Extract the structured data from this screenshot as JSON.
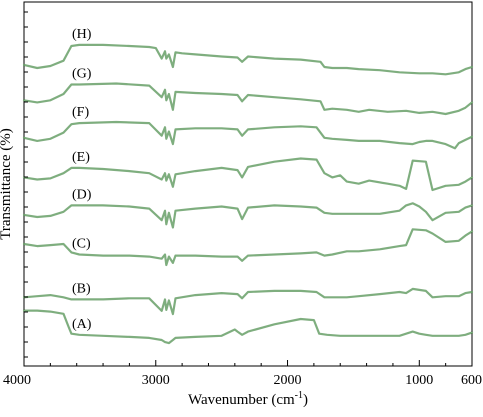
{
  "chart_data": {
    "type": "line",
    "title": "",
    "xlabel": "Wavenumber (cm",
    "xlabel_superscript": "-1",
    "xlabel_close": ")",
    "ylabel": "Transmittance (%)",
    "xlim": [
      4000,
      600
    ],
    "x_reversed": true,
    "y_tick_labels": false,
    "grid": false,
    "legend": "none",
    "x_ticks": [
      {
        "value": 4000,
        "label": "4000"
      },
      {
        "value": 3000,
        "label": "3000"
      },
      {
        "value": 2000,
        "label": "2000"
      },
      {
        "value": 1000,
        "label": "1000"
      },
      {
        "value": 600,
        "label": "600"
      }
    ],
    "colors": {
      "primary": "#7dae7d",
      "noise": "#1f6e1f",
      "axis": "#000000"
    },
    "series": [
      {
        "name": "(H)",
        "offset": 7,
        "points": [
          [
            4000,
            12
          ],
          [
            3900,
            9
          ],
          [
            3800,
            11
          ],
          [
            3700,
            16
          ],
          [
            3640,
            30
          ],
          [
            3580,
            31
          ],
          [
            3400,
            31
          ],
          [
            3200,
            30
          ],
          [
            3050,
            29
          ],
          [
            3000,
            28
          ],
          [
            2955,
            18
          ],
          [
            2930,
            25
          ],
          [
            2920,
            18
          ],
          [
            2900,
            22
          ],
          [
            2870,
            10
          ],
          [
            2850,
            24
          ],
          [
            2800,
            23
          ],
          [
            2700,
            22
          ],
          [
            2500,
            20
          ],
          [
            2380,
            19
          ],
          [
            2345,
            15
          ],
          [
            2300,
            20
          ],
          [
            2100,
            18
          ],
          [
            1900,
            17
          ],
          [
            1750,
            15
          ],
          [
            1720,
            10
          ],
          [
            1660,
            9
          ],
          [
            1550,
            9
          ],
          [
            1460,
            8
          ],
          [
            1300,
            7
          ],
          [
            1150,
            5
          ],
          [
            1000,
            4
          ],
          [
            900,
            4
          ],
          [
            800,
            3
          ],
          [
            700,
            5
          ],
          [
            650,
            8
          ],
          [
            600,
            10
          ]
        ]
      },
      {
        "name": "(G)",
        "offset": 6,
        "points": [
          [
            4000,
            14
          ],
          [
            3900,
            12
          ],
          [
            3800,
            14
          ],
          [
            3700,
            20
          ],
          [
            3640,
            29
          ],
          [
            3580,
            29
          ],
          [
            3300,
            30
          ],
          [
            3050,
            28
          ],
          [
            2955,
            17
          ],
          [
            2930,
            24
          ],
          [
            2920,
            14
          ],
          [
            2900,
            20
          ],
          [
            2870,
            5
          ],
          [
            2850,
            22
          ],
          [
            2700,
            21
          ],
          [
            2500,
            20
          ],
          [
            2380,
            19
          ],
          [
            2345,
            13
          ],
          [
            2300,
            19
          ],
          [
            2100,
            17
          ],
          [
            1900,
            15
          ],
          [
            1750,
            13
          ],
          [
            1720,
            5
          ],
          [
            1660,
            6
          ],
          [
            1550,
            5
          ],
          [
            1460,
            3
          ],
          [
            1380,
            5
          ],
          [
            1240,
            3
          ],
          [
            1100,
            4
          ],
          [
            1000,
            2
          ],
          [
            900,
            3
          ],
          [
            800,
            1
          ],
          [
            700,
            4
          ],
          [
            650,
            7
          ],
          [
            600,
            12
          ]
        ]
      },
      {
        "name": "(F)",
        "offset": 5,
        "points": [
          [
            4000,
            14
          ],
          [
            3900,
            11
          ],
          [
            3800,
            13
          ],
          [
            3700,
            19
          ],
          [
            3640,
            27
          ],
          [
            3580,
            28
          ],
          [
            3300,
            29
          ],
          [
            3050,
            28
          ],
          [
            2955,
            16
          ],
          [
            2930,
            24
          ],
          [
            2920,
            13
          ],
          [
            2900,
            20
          ],
          [
            2870,
            8
          ],
          [
            2850,
            22
          ],
          [
            2700,
            23
          ],
          [
            2500,
            23
          ],
          [
            2380,
            22
          ],
          [
            2345,
            16
          ],
          [
            2300,
            22
          ],
          [
            2100,
            24
          ],
          [
            1900,
            25
          ],
          [
            1780,
            24
          ],
          [
            1720,
            14
          ],
          [
            1660,
            13
          ],
          [
            1550,
            12
          ],
          [
            1460,
            11
          ],
          [
            1300,
            11
          ],
          [
            1150,
            9
          ],
          [
            1050,
            8
          ],
          [
            1000,
            10
          ],
          [
            950,
            11
          ],
          [
            900,
            11
          ],
          [
            800,
            8
          ],
          [
            730,
            4
          ],
          [
            700,
            9
          ],
          [
            650,
            12
          ],
          [
            600,
            15
          ]
        ]
      },
      {
        "name": "(E)",
        "offset": 4,
        "points": [
          [
            4000,
            12
          ],
          [
            3900,
            10
          ],
          [
            3800,
            11
          ],
          [
            3700,
            16
          ],
          [
            3640,
            21
          ],
          [
            3580,
            21
          ],
          [
            3400,
            20
          ],
          [
            3200,
            18
          ],
          [
            3050,
            16
          ],
          [
            2955,
            10
          ],
          [
            2930,
            16
          ],
          [
            2920,
            9
          ],
          [
            2900,
            15
          ],
          [
            2870,
            3
          ],
          [
            2850,
            15
          ],
          [
            2700,
            18
          ],
          [
            2500,
            21
          ],
          [
            2380,
            19
          ],
          [
            2345,
            12
          ],
          [
            2300,
            22
          ],
          [
            2100,
            27
          ],
          [
            1900,
            30
          ],
          [
            1780,
            29
          ],
          [
            1720,
            16
          ],
          [
            1660,
            12
          ],
          [
            1600,
            14
          ],
          [
            1550,
            8
          ],
          [
            1460,
            6
          ],
          [
            1380,
            9
          ],
          [
            1240,
            6
          ],
          [
            1150,
            4
          ],
          [
            1100,
            1
          ],
          [
            1050,
            28
          ],
          [
            950,
            27
          ],
          [
            900,
            0
          ],
          [
            800,
            4
          ],
          [
            700,
            5
          ],
          [
            650,
            8
          ],
          [
            600,
            12
          ]
        ]
      },
      {
        "name": "(D)",
        "offset": 3,
        "points": [
          [
            4000,
            12
          ],
          [
            3900,
            10
          ],
          [
            3800,
            11
          ],
          [
            3700,
            15
          ],
          [
            3640,
            21
          ],
          [
            3580,
            21
          ],
          [
            3400,
            21
          ],
          [
            3200,
            20
          ],
          [
            3050,
            18
          ],
          [
            2955,
            7
          ],
          [
            2930,
            16
          ],
          [
            2920,
            3
          ],
          [
            2900,
            14
          ],
          [
            2870,
            0
          ],
          [
            2850,
            16
          ],
          [
            2700,
            18
          ],
          [
            2500,
            20
          ],
          [
            2380,
            18
          ],
          [
            2345,
            8
          ],
          [
            2300,
            19
          ],
          [
            2100,
            21
          ],
          [
            1900,
            20
          ],
          [
            1780,
            19
          ],
          [
            1720,
            14
          ],
          [
            1660,
            13
          ],
          [
            1550,
            13
          ],
          [
            1460,
            13
          ],
          [
            1300,
            13
          ],
          [
            1150,
            16
          ],
          [
            1100,
            21
          ],
          [
            1050,
            23
          ],
          [
            1000,
            20
          ],
          [
            950,
            15
          ],
          [
            900,
            7
          ],
          [
            800,
            14
          ],
          [
            700,
            15
          ],
          [
            650,
            19
          ],
          [
            600,
            21
          ]
        ]
      },
      {
        "name": "(C)",
        "offset": 2,
        "points": [
          [
            4000,
            20
          ],
          [
            3900,
            18
          ],
          [
            3800,
            19
          ],
          [
            3700,
            20
          ],
          [
            3640,
            12
          ],
          [
            3580,
            10
          ],
          [
            3400,
            9
          ],
          [
            3200,
            9
          ],
          [
            3050,
            8
          ],
          [
            2955,
            6
          ],
          [
            2930,
            10
          ],
          [
            2920,
            0
          ],
          [
            2900,
            8
          ],
          [
            2870,
            2
          ],
          [
            2850,
            9
          ],
          [
            2700,
            9
          ],
          [
            2500,
            8
          ],
          [
            2380,
            8
          ],
          [
            2345,
            4
          ],
          [
            2300,
            9
          ],
          [
            2100,
            10
          ],
          [
            1900,
            11
          ],
          [
            1780,
            12
          ],
          [
            1720,
            9
          ],
          [
            1660,
            10
          ],
          [
            1550,
            13
          ],
          [
            1460,
            13
          ],
          [
            1300,
            15
          ],
          [
            1150,
            18
          ],
          [
            1100,
            19
          ],
          [
            1050,
            34
          ],
          [
            950,
            33
          ],
          [
            900,
            30
          ],
          [
            800,
            22
          ],
          [
            700,
            23
          ],
          [
            650,
            28
          ],
          [
            600,
            32
          ]
        ]
      },
      {
        "name": "(B)",
        "offset": 1,
        "points": [
          [
            4000,
            5
          ],
          [
            3900,
            6
          ],
          [
            3800,
            7
          ],
          [
            3700,
            5
          ],
          [
            3640,
            3
          ],
          [
            3580,
            3
          ],
          [
            3400,
            3
          ],
          [
            3200,
            4
          ],
          [
            3050,
            4
          ],
          [
            2955,
            -8
          ],
          [
            2930,
            3
          ],
          [
            2920,
            -7
          ],
          [
            2900,
            2
          ],
          [
            2870,
            -11
          ],
          [
            2850,
            4
          ],
          [
            2700,
            7
          ],
          [
            2500,
            9
          ],
          [
            2380,
            8
          ],
          [
            2345,
            4
          ],
          [
            2300,
            10
          ],
          [
            2100,
            11
          ],
          [
            1900,
            11
          ],
          [
            1780,
            10
          ],
          [
            1720,
            5
          ],
          [
            1660,
            5
          ],
          [
            1550,
            5
          ],
          [
            1460,
            6
          ],
          [
            1300,
            8
          ],
          [
            1150,
            10
          ],
          [
            1100,
            9
          ],
          [
            1050,
            13
          ],
          [
            950,
            11
          ],
          [
            900,
            5
          ],
          [
            800,
            6
          ],
          [
            700,
            6
          ],
          [
            650,
            9
          ],
          [
            600,
            10
          ]
        ]
      },
      {
        "name": "(A)",
        "offset": 0,
        "points": [
          [
            4000,
            28
          ],
          [
            3900,
            28
          ],
          [
            3800,
            27
          ],
          [
            3700,
            25
          ],
          [
            3660,
            12
          ],
          [
            3640,
            6
          ],
          [
            3580,
            5
          ],
          [
            3400,
            4
          ],
          [
            3200,
            3
          ],
          [
            3050,
            2
          ],
          [
            2955,
            0
          ],
          [
            2930,
            -2
          ],
          [
            2900,
            -3
          ],
          [
            2870,
            0
          ],
          [
            2850,
            2
          ],
          [
            2700,
            3
          ],
          [
            2500,
            4
          ],
          [
            2400,
            10
          ],
          [
            2380,
            8
          ],
          [
            2345,
            5
          ],
          [
            2300,
            8
          ],
          [
            2100,
            15
          ],
          [
            1900,
            20
          ],
          [
            1800,
            19
          ],
          [
            1760,
            6
          ],
          [
            1700,
            5
          ],
          [
            1600,
            4
          ],
          [
            1460,
            4
          ],
          [
            1300,
            4
          ],
          [
            1150,
            4
          ],
          [
            1100,
            6
          ],
          [
            1050,
            8
          ],
          [
            1000,
            6
          ],
          [
            950,
            5
          ],
          [
            900,
            4
          ],
          [
            800,
            4
          ],
          [
            700,
            4
          ],
          [
            650,
            5
          ],
          [
            600,
            7
          ]
        ]
      }
    ]
  }
}
